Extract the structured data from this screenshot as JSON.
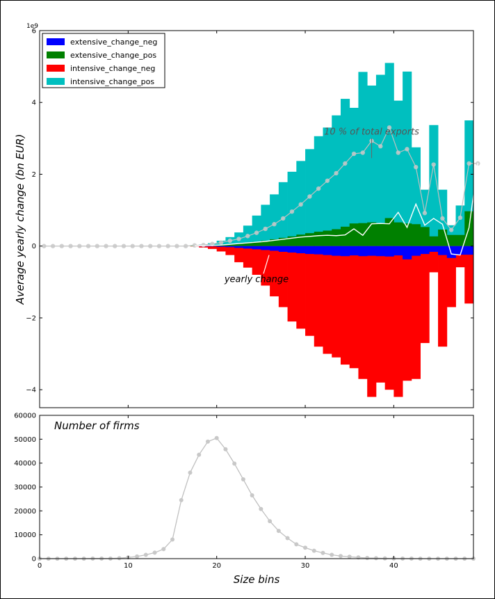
{
  "chart_data": [
    {
      "type": "bar",
      "panel": "top",
      "ylabel": "Average yearly change (bn EUR)",
      "y_exponent_label": "1e9",
      "xlim": [
        0,
        49
      ],
      "ylim": [
        -4500000000.0,
        6000000000.0
      ],
      "yticks": [
        -4000000000.0,
        -2000000000.0,
        0,
        2000000000.0,
        4000000000.0,
        6000000000.0
      ],
      "ytick_labels": [
        "−4",
        "−2",
        "0",
        "2",
        "4",
        "6"
      ],
      "legend": {
        "placement": "top-left"
      },
      "colors": {
        "extensive_change_neg": "#0000ff",
        "extensive_change_pos": "#008000",
        "intensive_change_neg": "#ff0000",
        "intensive_change_pos": "#00bfbf",
        "yearly_change": "#ffffff",
        "exports_10pct": "#c0c0c0"
      },
      "series": [
        {
          "name": "extensive_change_neg",
          "kind": "bar",
          "values": [
            0,
            0,
            0,
            0,
            0,
            0,
            0,
            0,
            0,
            0,
            0,
            0,
            0,
            0,
            0,
            0,
            0,
            0,
            -5000000.0,
            -10000000.0,
            -20000000.0,
            -30000000.0,
            -50000000.0,
            -70000000.0,
            -90000000.0,
            -110000000.0,
            -130000000.0,
            -160000000.0,
            -180000000.0,
            -200000000.0,
            -220000000.0,
            -230000000.0,
            -250000000.0,
            -270000000.0,
            -280000000.0,
            -260000000.0,
            -280000000.0,
            -270000000.0,
            -280000000.0,
            -290000000.0,
            -260000000.0,
            -370000000.0,
            -270000000.0,
            -220000000.0,
            -160000000.0,
            -250000000.0,
            -330000000.0,
            -240000000.0,
            -240000000.0
          ]
        },
        {
          "name": "extensive_change_pos",
          "kind": "bar",
          "values": [
            0,
            0,
            0,
            0,
            0,
            0,
            0,
            0,
            0,
            0,
            0,
            0,
            0,
            0,
            0,
            0,
            0,
            5000000.0,
            10000000.0,
            20000000.0,
            30000000.0,
            50000000.0,
            70000000.0,
            90000000.0,
            120000000.0,
            150000000.0,
            190000000.0,
            230000000.0,
            270000000.0,
            320000000.0,
            360000000.0,
            400000000.0,
            430000000.0,
            470000000.0,
            540000000.0,
            630000000.0,
            640000000.0,
            660000000.0,
            640000000.0,
            780000000.0,
            660000000.0,
            630000000.0,
            610000000.0,
            530000000.0,
            270000000.0,
            460000000.0,
            310000000.0,
            310000000.0,
            970000000.0
          ]
        },
        {
          "name": "intensive_change_neg",
          "kind": "bar",
          "values": [
            0,
            0,
            0,
            0,
            0,
            0,
            0,
            0,
            0,
            0,
            0,
            0,
            0,
            0,
            0,
            0,
            0,
            -10000000.0,
            -40000000.0,
            -80000000.0,
            -150000000.0,
            -250000000.0,
            -450000000.0,
            -600000000.0,
            -800000000.0,
            -1100000000.0,
            -1400000000.0,
            -1700000000.0,
            -2100000000.0,
            -2300000000.0,
            -2500000000.0,
            -2800000000.0,
            -3000000000.0,
            -3100000000.0,
            -3300000000.0,
            -3400000000.0,
            -3700000000.0,
            -4200000000.0,
            -3800000000.0,
            -4000000000.0,
            -4200000000.0,
            -3750000000.0,
            -3700000000.0,
            -2700000000.0,
            -730000000.0,
            -2800000000.0,
            -1700000000.0,
            -590000000.0,
            -1600000000.0
          ]
        },
        {
          "name": "intensive_change_pos",
          "kind": "bar",
          "values": [
            0,
            0,
            0,
            0,
            0,
            0,
            0,
            0,
            0,
            0,
            0,
            0,
            0,
            0,
            0,
            0,
            0,
            10000000.0,
            40000000.0,
            80000000.0,
            150000000.0,
            250000000.0,
            380000000.0,
            570000000.0,
            850000000.0,
            1150000000.0,
            1440000000.0,
            1780000000.0,
            2070000000.0,
            2370000000.0,
            2700000000.0,
            3060000000.0,
            3300000000.0,
            3640000000.0,
            4100000000.0,
            3850000000.0,
            4850000000.0,
            4470000000.0,
            4770000000.0,
            5100000000.0,
            4050000000.0,
            4860000000.0,
            2750000000.0,
            1570000000.0,
            3370000000.0,
            1570000000.0,
            580000000.0,
            1130000000.0,
            3500000000.0
          ]
        },
        {
          "name": "yearly_change",
          "kind": "line",
          "x": [
            17,
            18,
            19,
            20,
            21,
            22,
            23,
            24,
            25,
            26,
            27,
            28,
            29,
            30,
            31,
            32,
            33,
            34,
            35,
            36,
            37,
            38,
            39,
            40,
            41,
            42,
            43,
            44,
            45,
            46,
            47,
            48,
            49
          ],
          "values": [
            5000000.0,
            10000000.0,
            20000000.0,
            30000000.0,
            50000000.0,
            70000000.0,
            90000000.0,
            110000000.0,
            130000000.0,
            160000000.0,
            190000000.0,
            220000000.0,
            250000000.0,
            270000000.0,
            290000000.0,
            300000000.0,
            290000000.0,
            310000000.0,
            480000000.0,
            300000000.0,
            620000000.0,
            630000000.0,
            620000000.0,
            940000000.0,
            520000000.0,
            1170000000.0,
            580000000.0,
            770000000.0,
            610000000.0,
            -220000000.0,
            -250000000.0,
            510000000.0,
            2320000000.0
          ]
        },
        {
          "name": "10 % of total exports",
          "kind": "line-markers",
          "x": [
            0,
            1,
            2,
            3,
            4,
            5,
            6,
            7,
            8,
            9,
            10,
            11,
            12,
            13,
            14,
            15,
            16,
            17,
            18,
            19,
            20,
            21,
            22,
            23,
            24,
            25,
            26,
            27,
            28,
            29,
            30,
            31,
            32,
            33,
            34,
            35,
            36,
            37,
            38,
            39,
            40,
            41,
            42,
            43,
            44,
            45,
            46,
            47,
            48,
            49
          ],
          "values": [
            0,
            0,
            0,
            0,
            0,
            0,
            0,
            0,
            0,
            0,
            0,
            0,
            0,
            0,
            0,
            0,
            0,
            20000000.0,
            30000000.0,
            60000000.0,
            100000000.0,
            150000000.0,
            200000000.0,
            280000000.0,
            370000000.0,
            480000000.0,
            610000000.0,
            770000000.0,
            960000000.0,
            1160000000.0,
            1380000000.0,
            1600000000.0,
            1820000000.0,
            2030000000.0,
            2300000000.0,
            2570000000.0,
            2600000000.0,
            2930000000.0,
            2780000000.0,
            3300000000.0,
            2600000000.0,
            2700000000.0,
            2200000000.0,
            920000000.0,
            2270000000.0,
            770000000.0,
            450000000.0,
            790000000.0,
            2300000000.0,
            2300000000.0
          ]
        }
      ],
      "annotations": [
        {
          "text": "10 % of total exports",
          "x": 37.5,
          "y": 3100000000.0,
          "target_y": 2450000000.0
        },
        {
          "text": "yearly change",
          "x": 24.5,
          "y": -1000000000.0,
          "target_y": -250000000.0
        }
      ]
    },
    {
      "type": "line",
      "panel": "bottom",
      "title": "Number of firms",
      "xlabel": "Size bins",
      "xlim": [
        0,
        49
      ],
      "ylim": [
        0,
        60000
      ],
      "xticks": [
        0,
        10,
        20,
        30,
        40
      ],
      "yticks": [
        0,
        10000,
        20000,
        30000,
        40000,
        50000,
        60000
      ],
      "ytick_labels": [
        "0",
        "10000",
        "20000",
        "30000",
        "40000",
        "50000",
        "60000"
      ],
      "color": "#c0c0c0",
      "x": [
        0,
        1,
        2,
        3,
        4,
        5,
        6,
        7,
        8,
        9,
        10,
        11,
        12,
        13,
        14,
        15,
        16,
        17,
        18,
        19,
        20,
        21,
        22,
        23,
        24,
        25,
        26,
        27,
        28,
        29,
        30,
        31,
        32,
        33,
        34,
        35,
        36,
        37,
        38,
        39,
        40,
        41,
        42,
        43,
        44,
        45,
        46,
        47,
        48,
        49
      ],
      "values": [
        0,
        0,
        0,
        0,
        0,
        0,
        50,
        50,
        50,
        200,
        500,
        900,
        1600,
        2500,
        4000,
        8000,
        24500,
        36000,
        43500,
        49000,
        50500,
        45800,
        39800,
        33200,
        26500,
        20800,
        15700,
        11600,
        8600,
        6000,
        4600,
        3300,
        2400,
        1600,
        1100,
        800,
        500,
        300,
        200,
        100,
        60,
        40,
        20,
        10,
        5,
        5,
        5,
        0,
        0,
        0
      ]
    }
  ]
}
